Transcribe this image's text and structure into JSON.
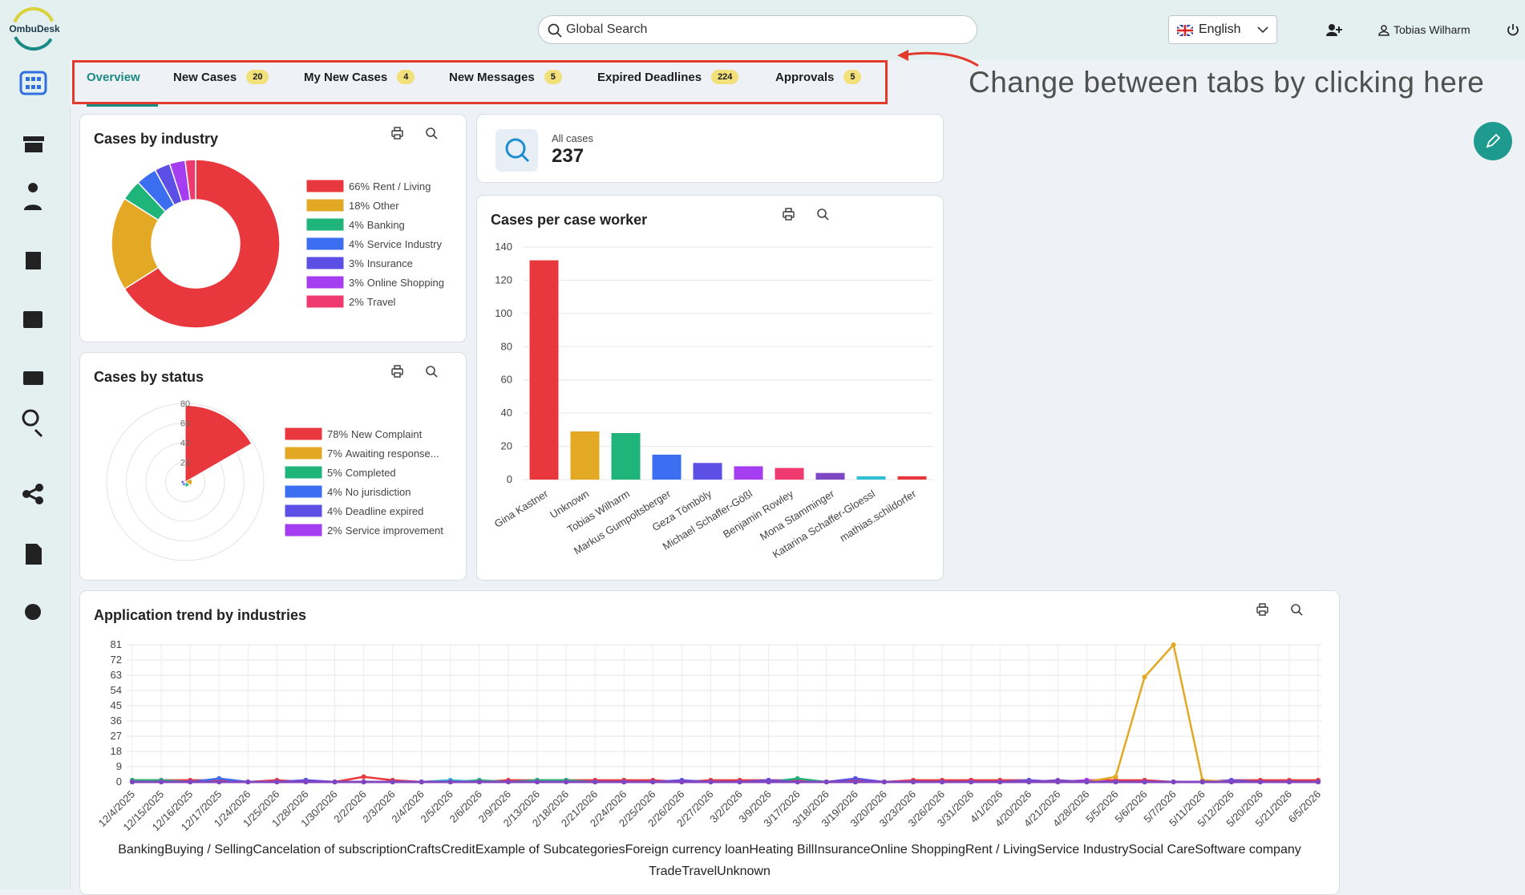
{
  "header": {
    "logo": "OmbuDesk",
    "search_placeholder": "Global Search",
    "language": "English",
    "user": "Tobias Wilharm"
  },
  "tabs": [
    {
      "label": "Overview"
    },
    {
      "label": "New Cases",
      "count": 20
    },
    {
      "label": "My New Cases",
      "count": 4
    },
    {
      "label": "New Messages",
      "count": 5
    },
    {
      "label": "Expired Deadlines",
      "count": 224
    },
    {
      "label": "Approvals",
      "count": 5
    }
  ],
  "annotation": "Change between tabs by clicking here",
  "all_cases": {
    "label": "All cases",
    "value": 237
  },
  "chart_data": [
    {
      "type": "doughnut",
      "title": "Cases by industry",
      "categories": [
        "Rent / Living",
        "Other",
        "Banking",
        "Service Industry",
        "Insurance",
        "Online Shopping",
        "Travel"
      ],
      "values": [
        66,
        18,
        4,
        4,
        3,
        3,
        2
      ],
      "value_labels": [
        "66%",
        "18%",
        "4%",
        "4%",
        "3%",
        "3%",
        "2%"
      ],
      "colors": [
        "#e8383d",
        "#e3a824",
        "#1fb57a",
        "#3b6ef0",
        "#5b4fe6",
        "#a43ef0",
        "#ee3a6e"
      ]
    },
    {
      "type": "polar",
      "title": "Cases by status",
      "categories": [
        "New Complaint",
        "Awaiting response...",
        "Completed",
        "No jurisdiction",
        "Deadline expired",
        "Service improvement"
      ],
      "values": [
        78,
        7,
        5,
        4,
        4,
        2
      ],
      "value_labels": [
        "78%",
        "7%",
        "5%",
        "4%",
        "4%",
        "2%"
      ],
      "colors": [
        "#e8383d",
        "#e3a824",
        "#1fb57a",
        "#3b6ef0",
        "#5b4fe6",
        "#a43ef0"
      ],
      "rlim": [
        0,
        80
      ],
      "rticks": [
        20,
        40,
        60,
        80
      ]
    },
    {
      "type": "bar",
      "title": "Cases per case worker",
      "categories": [
        "Gina Kastner",
        "Unknown",
        "Tobias Wilharm",
        "Markus Gumpoltsberger",
        "Geza Tömböly",
        "Michael Schaffer-Gößl",
        "Benjamin Rowley",
        "Mona Stamminger",
        "Katarina Schaffer-Gloessl",
        "mathias.schildorfer"
      ],
      "values": [
        132,
        29,
        28,
        15,
        10,
        8,
        7,
        4,
        2,
        2
      ],
      "colors": [
        "#e8383d",
        "#e3a824",
        "#1fb57a",
        "#3b6ef0",
        "#5b4fe6",
        "#a43ef0",
        "#ee3a6e",
        "#7d47c4",
        "#2fc0d8",
        "#e8383d"
      ],
      "ylim": [
        0,
        140
      ],
      "yticks": [
        0,
        20,
        40,
        60,
        80,
        100,
        120,
        140
      ],
      "grid": true
    },
    {
      "type": "line",
      "title": "Application trend by industries",
      "x": [
        "12/4/2025",
        "12/15/2025",
        "12/16/2025",
        "12/17/2025",
        "1/24/2026",
        "1/25/2026",
        "1/28/2026",
        "1/30/2026",
        "2/2/2026",
        "2/3/2026",
        "2/4/2026",
        "2/5/2026",
        "2/6/2026",
        "2/9/2026",
        "2/13/2026",
        "2/18/2026",
        "2/21/2026",
        "2/24/2026",
        "2/25/2026",
        "2/26/2026",
        "2/27/2026",
        "3/2/2026",
        "3/9/2026",
        "3/17/2026",
        "3/18/2026",
        "3/19/2026",
        "3/20/2026",
        "3/23/2026",
        "3/26/2026",
        "3/31/2026",
        "4/1/2026",
        "4/20/2026",
        "4/21/2026",
        "4/28/2026",
        "5/5/2026",
        "5/6/2026",
        "5/7/2026",
        "5/11/2026",
        "5/12/2026",
        "5/20/2026",
        "5/21/2026",
        "6/5/2026"
      ],
      "ylim": [
        0,
        81
      ],
      "yticks": [
        0,
        9,
        18,
        27,
        36,
        45,
        54,
        63,
        72,
        81
      ],
      "grid": true,
      "series": [
        {
          "name": "Banking",
          "color": "#e8383d",
          "values": [
            1,
            1,
            1,
            1,
            0,
            1,
            0,
            0,
            3,
            1,
            0,
            0,
            0,
            1,
            1,
            1,
            1,
            1,
            1,
            0,
            1,
            1,
            1,
            1,
            0,
            1,
            0,
            1,
            1,
            1,
            1,
            1,
            0,
            1,
            1,
            1,
            0,
            0,
            1,
            1,
            1,
            1
          ]
        },
        {
          "name": "Buying / Selling",
          "color": "#e3a824",
          "values": [
            0,
            0,
            0,
            0,
            0,
            0,
            0,
            0,
            0,
            0,
            0,
            0,
            0,
            0,
            0,
            0,
            0,
            0,
            0,
            0,
            0,
            0,
            0,
            0,
            0,
            0,
            0,
            0,
            0,
            0,
            0,
            0,
            0,
            0,
            0,
            0,
            0,
            0,
            0,
            0,
            0,
            0
          ]
        },
        {
          "name": "Cancelation of subscription",
          "color": "#1fb57a",
          "values": [
            1,
            1,
            0,
            0,
            0,
            0,
            0,
            0,
            0,
            0,
            0,
            0,
            1,
            0,
            1,
            1,
            0,
            0,
            0,
            0,
            0,
            0,
            0,
            2,
            0,
            0,
            0,
            0,
            0,
            0,
            0,
            0,
            0,
            0,
            0,
            0,
            0,
            0,
            0,
            0,
            0,
            0
          ]
        },
        {
          "name": "Crafts",
          "color": "#3b6ef0",
          "values": [
            0,
            0,
            0,
            2,
            0,
            0,
            1,
            0,
            0,
            0,
            0,
            1,
            0,
            0,
            0,
            0,
            0,
            0,
            0,
            0,
            0,
            0,
            0,
            0,
            0,
            0,
            0,
            0,
            0,
            0,
            0,
            0,
            0,
            0,
            0,
            0,
            0,
            0,
            0,
            0,
            0,
            0
          ]
        },
        {
          "name": "Credit",
          "color": "#5b4fe6",
          "values": [
            0,
            0,
            0,
            0,
            0,
            0,
            1,
            0,
            0,
            0,
            0,
            0,
            0,
            0,
            0,
            0,
            0,
            0,
            0,
            1,
            0,
            0,
            1,
            0,
            0,
            2,
            0,
            0,
            0,
            0,
            0,
            1,
            0,
            0,
            0,
            0,
            0,
            0,
            1,
            0,
            0,
            0
          ]
        },
        {
          "name": "Example of Subcategories",
          "color": "#a43ef0",
          "values": [
            0,
            0,
            0,
            0,
            0,
            0,
            0,
            0,
            0,
            0,
            0,
            0,
            0,
            0,
            0,
            0,
            0,
            0,
            0,
            0,
            0,
            0,
            0,
            0,
            0,
            0,
            0,
            0,
            0,
            0,
            0,
            0,
            0,
            1,
            0,
            0,
            0,
            0,
            0,
            0,
            0,
            0
          ]
        },
        {
          "name": "Foreign currency loan",
          "color": "#ee3a6e",
          "values": [
            0,
            0,
            0,
            0,
            0,
            0,
            0,
            0,
            0,
            0,
            0,
            0,
            0,
            0,
            0,
            0,
            0,
            0,
            0,
            0,
            0,
            0,
            0,
            0,
            0,
            0,
            0,
            0,
            0,
            0,
            0,
            0,
            0,
            0,
            0,
            0,
            0,
            0,
            0,
            0,
            0,
            0
          ]
        },
        {
          "name": "Heating Bill",
          "color": "#7d47c4",
          "values": [
            0,
            0,
            0,
            0,
            0,
            0,
            0,
            0,
            0,
            0,
            0,
            0,
            0,
            0,
            0,
            0,
            0,
            0,
            0,
            0,
            0,
            0,
            0,
            0,
            0,
            0,
            0,
            0,
            0,
            0,
            0,
            0,
            1,
            0,
            0,
            0,
            0,
            0,
            0,
            0,
            0,
            0
          ]
        },
        {
          "name": "Insurance",
          "color": "#2fc0d8",
          "values": [
            0,
            0,
            0,
            0,
            0,
            0,
            0,
            0,
            0,
            0,
            0,
            1,
            0,
            0,
            0,
            0,
            0,
            0,
            0,
            0,
            0,
            0,
            0,
            0,
            0,
            0,
            0,
            0,
            0,
            0,
            0,
            0,
            0,
            0,
            0,
            0,
            0,
            0,
            0,
            0,
            0,
            0
          ]
        },
        {
          "name": "Online Shopping",
          "color": "#e8383d",
          "values": [
            0,
            0,
            0,
            0,
            0,
            0,
            0,
            0,
            0,
            0,
            0,
            0,
            0,
            0,
            0,
            0,
            0,
            0,
            0,
            0,
            0,
            0,
            0,
            0,
            0,
            0,
            0,
            0,
            0,
            1,
            0,
            0,
            0,
            0,
            0,
            0,
            0,
            0,
            0,
            0,
            0,
            0
          ]
        },
        {
          "name": "Rent / Living",
          "color": "#e3a824",
          "values": [
            0,
            0,
            0,
            0,
            0,
            0,
            0,
            0,
            0,
            0,
            0,
            0,
            0,
            0,
            0,
            0,
            0,
            0,
            0,
            0,
            0,
            0,
            0,
            0,
            0,
            0,
            0,
            0,
            0,
            0,
            0,
            0,
            0,
            0,
            3,
            62,
            81,
            1,
            0,
            0,
            0,
            0
          ]
        },
        {
          "name": "Service Industry",
          "color": "#1fb57a",
          "values": [
            0,
            0,
            0,
            0,
            0,
            0,
            0,
            0,
            0,
            0,
            0,
            0,
            0,
            0,
            0,
            0,
            0,
            0,
            0,
            0,
            0,
            0,
            0,
            0,
            0,
            0,
            0,
            0,
            0,
            0,
            0,
            0,
            0,
            0,
            0,
            0,
            0,
            0,
            0,
            0,
            0,
            0
          ]
        },
        {
          "name": "Social Care",
          "color": "#3b6ef0",
          "values": [
            0,
            0,
            0,
            0,
            0,
            0,
            0,
            0,
            0,
            0,
            0,
            0,
            0,
            0,
            0,
            0,
            0,
            0,
            0,
            0,
            0,
            0,
            0,
            0,
            0,
            0,
            0,
            0,
            0,
            0,
            0,
            0,
            0,
            0,
            0,
            0,
            0,
            0,
            0,
            0,
            0,
            0
          ]
        },
        {
          "name": "Software company",
          "color": "#5b4fe6",
          "values": [
            0,
            0,
            0,
            0,
            0,
            0,
            0,
            0,
            0,
            0,
            0,
            0,
            0,
            0,
            0,
            0,
            0,
            0,
            0,
            0,
            0,
            0,
            0,
            0,
            0,
            0,
            0,
            0,
            0,
            0,
            0,
            0,
            0,
            0,
            0,
            0,
            0,
            0,
            0,
            0,
            0,
            0
          ]
        },
        {
          "name": "Trade",
          "color": "#a43ef0",
          "values": [
            0,
            0,
            0,
            0,
            0,
            0,
            0,
            0,
            0,
            0,
            0,
            0,
            0,
            0,
            0,
            0,
            0,
            0,
            0,
            0,
            0,
            0,
            0,
            0,
            0,
            0,
            0,
            0,
            0,
            0,
            0,
            0,
            0,
            0,
            0,
            0,
            0,
            0,
            0,
            0,
            0,
            0
          ]
        },
        {
          "name": "Travel",
          "color": "#ee3a6e",
          "values": [
            0,
            0,
            0,
            0,
            0,
            0,
            0,
            0,
            0,
            0,
            0,
            0,
            0,
            0,
            0,
            0,
            0,
            0,
            0,
            0,
            0,
            0,
            0,
            0,
            0,
            0,
            0,
            0,
            0,
            0,
            0,
            0,
            0,
            0,
            0,
            0,
            0,
            0,
            0,
            0,
            0,
            0
          ]
        },
        {
          "name": "Unknown",
          "color": "#7d47c4",
          "values": [
            0,
            0,
            0,
            0,
            0,
            0,
            0,
            0,
            0,
            0,
            0,
            0,
            0,
            0,
            0,
            0,
            0,
            0,
            0,
            0,
            0,
            0,
            0,
            0,
            0,
            0,
            0,
            0,
            0,
            0,
            0,
            0,
            0,
            0,
            0,
            0,
            0,
            0,
            0,
            0,
            0,
            0
          ]
        }
      ]
    }
  ]
}
